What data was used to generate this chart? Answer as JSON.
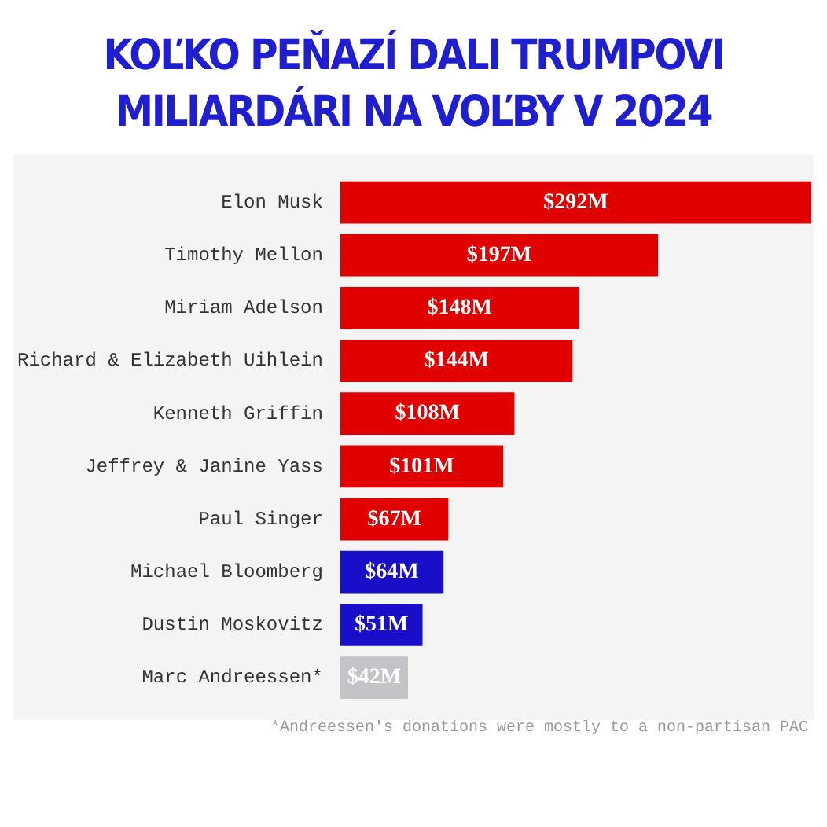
{
  "chart_data": {
    "type": "bar",
    "orientation": "horizontal",
    "title": "KOĽKO PEŇAZÍ DALI TRUMPOVI MILIARDÁRI NA VOĽBY V 2024",
    "categories": [
      "Elon Musk",
      "Timothy Mellon",
      "Miriam Adelson",
      "Richard & Elizabeth Uihlein",
      "Kenneth Griffin",
      "Jeffrey & Janine Yass",
      "Paul Singer",
      "Michael Bloomberg",
      "Dustin Moskovitz",
      "Marc Andreessen*"
    ],
    "values": [
      292,
      197,
      148,
      144,
      108,
      101,
      67,
      64,
      51,
      42
    ],
    "colors": [
      "#e00000",
      "#e00000",
      "#e00000",
      "#e00000",
      "#e00000",
      "#e00000",
      "#e00000",
      "#1a0fc8",
      "#1a0fc8",
      "#c4c4c8"
    ],
    "value_labels": [
      "$292M",
      "$197M",
      "$148M",
      "$144M",
      "$108M",
      "$101M",
      "$67M",
      "$64M",
      "$51M",
      "$42M"
    ],
    "annotations": [
      "*Andreessen's donations were mostly to a non-partisan PAC"
    ]
  }
}
